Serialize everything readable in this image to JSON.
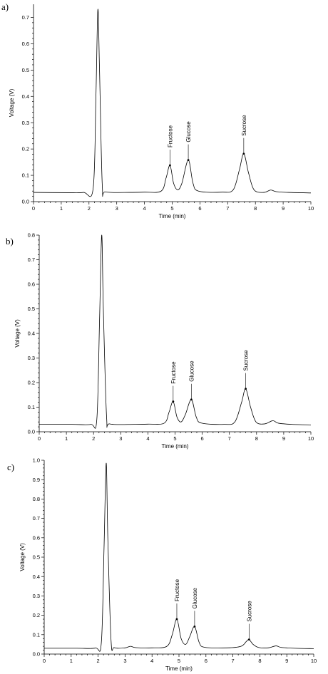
{
  "chart_data": [
    {
      "type": "line",
      "panel_label": "a)",
      "xlabel": "Time (min)",
      "ylabel": "Voltage (V)",
      "xlim": [
        0,
        10
      ],
      "ylim": [
        0,
        0.75
      ],
      "xticks": [
        "0",
        "1",
        "2",
        "3",
        "4",
        "5",
        "6",
        "7",
        "8",
        "9",
        "10"
      ],
      "yticks": [
        "0.0",
        "0.1",
        "0.2",
        "0.3",
        "0.4",
        "0.5",
        "0.6",
        "0.7"
      ],
      "baseline": 0.035,
      "trace_points": [
        [
          0,
          0.035
        ],
        [
          1.2,
          0.034
        ],
        [
          1.8,
          0.035
        ],
        [
          2.15,
          0.05
        ],
        [
          2.25,
          0.4
        ],
        [
          2.32,
          0.73
        ],
        [
          2.38,
          0.5
        ],
        [
          2.48,
          0.06
        ],
        [
          2.6,
          0.037
        ],
        [
          3.5,
          0.035
        ],
        [
          4.0,
          0.036
        ],
        [
          4.6,
          0.04
        ],
        [
          4.78,
          0.09
        ],
        [
          4.92,
          0.138
        ],
        [
          5.05,
          0.07
        ],
        [
          5.2,
          0.045
        ],
        [
          5.35,
          0.07
        ],
        [
          5.58,
          0.158
        ],
        [
          5.75,
          0.07
        ],
        [
          5.95,
          0.04
        ],
        [
          6.8,
          0.036
        ],
        [
          7.2,
          0.045
        ],
        [
          7.42,
          0.12
        ],
        [
          7.58,
          0.182
        ],
        [
          7.75,
          0.11
        ],
        [
          7.95,
          0.045
        ],
        [
          8.3,
          0.035
        ],
        [
          8.55,
          0.044
        ],
        [
          8.75,
          0.038
        ],
        [
          9.2,
          0.035
        ],
        [
          10,
          0.033
        ]
      ],
      "peaks": [
        {
          "label": "Fructose",
          "x": 4.92,
          "y": 0.138
        },
        {
          "label": "Glucose",
          "x": 5.58,
          "y": 0.158
        },
        {
          "label": "Sucrose",
          "x": 7.58,
          "y": 0.182
        }
      ]
    },
    {
      "type": "line",
      "panel_label": "b)",
      "xlabel": "Time (min)",
      "ylabel": "Voltage (V)",
      "xlim": [
        0,
        10
      ],
      "ylim": [
        0,
        0.8
      ],
      "xticks": [
        "0",
        "1",
        "2",
        "3",
        "4",
        "5",
        "6",
        "7",
        "8",
        "9",
        "10"
      ],
      "yticks": [
        "0.0",
        "0.1",
        "0.2",
        "0.3",
        "0.4",
        "0.5",
        "0.6",
        "0.7",
        "0.8"
      ],
      "baseline": 0.03,
      "trace_points": [
        [
          0,
          0.03
        ],
        [
          1.2,
          0.03
        ],
        [
          1.9,
          0.03
        ],
        [
          2.12,
          0.05
        ],
        [
          2.22,
          0.45
        ],
        [
          2.3,
          0.8
        ],
        [
          2.36,
          0.5
        ],
        [
          2.48,
          0.06
        ],
        [
          2.6,
          0.032
        ],
        [
          3.5,
          0.03
        ],
        [
          4.0,
          0.031
        ],
        [
          4.6,
          0.035
        ],
        [
          4.78,
          0.08
        ],
        [
          4.93,
          0.123
        ],
        [
          5.07,
          0.06
        ],
        [
          5.22,
          0.04
        ],
        [
          5.38,
          0.07
        ],
        [
          5.6,
          0.131
        ],
        [
          5.78,
          0.06
        ],
        [
          5.98,
          0.035
        ],
        [
          6.8,
          0.03
        ],
        [
          7.2,
          0.04
        ],
        [
          7.45,
          0.12
        ],
        [
          7.6,
          0.175
        ],
        [
          7.78,
          0.1
        ],
        [
          7.98,
          0.04
        ],
        [
          8.3,
          0.032
        ],
        [
          8.6,
          0.045
        ],
        [
          8.8,
          0.035
        ],
        [
          9.3,
          0.03
        ],
        [
          10,
          0.028
        ]
      ],
      "peaks": [
        {
          "label": "Fructose",
          "x": 4.93,
          "y": 0.123
        },
        {
          "label": "Glucose",
          "x": 5.6,
          "y": 0.131
        },
        {
          "label": "Sucrose",
          "x": 7.6,
          "y": 0.175
        }
      ]
    },
    {
      "type": "line",
      "panel_label": "c)",
      "xlabel": "Time (min)",
      "ylabel": "Voltage (V)",
      "xlim": [
        0,
        10
      ],
      "ylim": [
        0,
        1.0
      ],
      "xticks": [
        "0",
        "1",
        "2",
        "3",
        "4",
        "5",
        "6",
        "7",
        "8",
        "9",
        "10"
      ],
      "yticks": [
        "0.0",
        "0.1",
        "0.2",
        "0.3",
        "0.4",
        "0.5",
        "0.6",
        "0.7",
        "0.8",
        "0.9",
        "1.0"
      ],
      "baseline": 0.03,
      "trace_points": [
        [
          0,
          0.03
        ],
        [
          1.2,
          0.03
        ],
        [
          1.9,
          0.031
        ],
        [
          2.12,
          0.06
        ],
        [
          2.22,
          0.55
        ],
        [
          2.3,
          0.985
        ],
        [
          2.36,
          0.6
        ],
        [
          2.48,
          0.07
        ],
        [
          2.6,
          0.033
        ],
        [
          3.0,
          0.032
        ],
        [
          3.2,
          0.04
        ],
        [
          3.4,
          0.033
        ],
        [
          4.0,
          0.032
        ],
        [
          4.55,
          0.04
        ],
        [
          4.75,
          0.1
        ],
        [
          4.92,
          0.18
        ],
        [
          5.08,
          0.08
        ],
        [
          5.25,
          0.05
        ],
        [
          5.4,
          0.09
        ],
        [
          5.58,
          0.142
        ],
        [
          5.75,
          0.06
        ],
        [
          5.95,
          0.035
        ],
        [
          6.8,
          0.032
        ],
        [
          7.3,
          0.04
        ],
        [
          7.5,
          0.065
        ],
        [
          7.6,
          0.075
        ],
        [
          7.75,
          0.05
        ],
        [
          7.95,
          0.034
        ],
        [
          8.3,
          0.032
        ],
        [
          8.6,
          0.042
        ],
        [
          8.8,
          0.034
        ],
        [
          9.3,
          0.03
        ],
        [
          10,
          0.028
        ]
      ],
      "peaks": [
        {
          "label": "Fructose",
          "x": 4.92,
          "y": 0.18
        },
        {
          "label": "Glucose",
          "x": 5.58,
          "y": 0.142
        },
        {
          "label": "Sucrose",
          "x": 7.6,
          "y": 0.075
        }
      ]
    }
  ]
}
